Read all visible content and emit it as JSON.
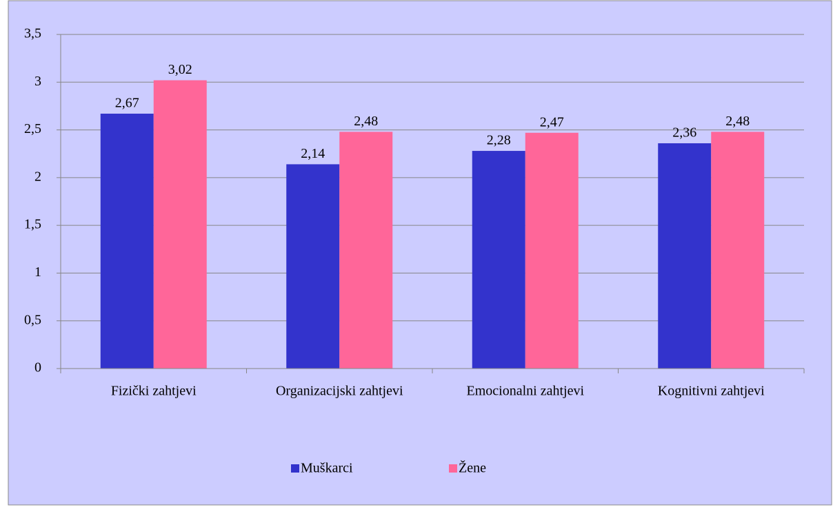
{
  "chart_data": {
    "type": "bar",
    "categories": [
      "Fizički zahtjevi",
      "Organizacijski zahtjevi",
      "Emocionalni zahtjevi",
      "Kognitivni zahtjevi"
    ],
    "series": [
      {
        "name": "Muškarci",
        "color": "#3333cc",
        "values": [
          2.67,
          2.14,
          2.28,
          2.36
        ],
        "value_labels": [
          "2,67",
          "2,14",
          "2,28",
          "2,36"
        ]
      },
      {
        "name": "Žene",
        "color": "#ff6699",
        "values": [
          3.02,
          2.48,
          2.47,
          2.48
        ],
        "value_labels": [
          "3,02",
          "2,48",
          "2,47",
          "2,48"
        ]
      }
    ],
    "ylim": [
      0,
      3.5
    ],
    "yticks": [
      0,
      {
        "value": 0.5,
        "label": "0,5"
      },
      1,
      {
        "value": 1.5,
        "label": "1,5"
      },
      2,
      {
        "value": 2.5,
        "label": "2,5"
      },
      3,
      {
        "value": 3.5,
        "label": "3,5"
      }
    ],
    "grid": true,
    "legend": "bottom"
  }
}
